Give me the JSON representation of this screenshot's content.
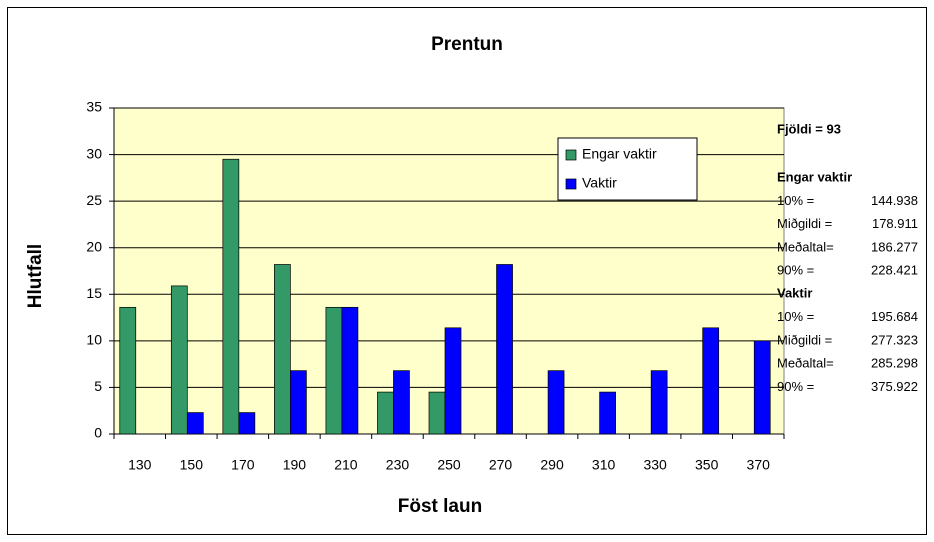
{
  "chart_data": {
    "type": "bar",
    "title": "Prentun",
    "x_label": "Föst laun",
    "y_label": "Hlutfall",
    "categories": [
      "130",
      "150",
      "170",
      "190",
      "210",
      "230",
      "250",
      "270",
      "290",
      "310",
      "330",
      "350",
      "370"
    ],
    "series": [
      {
        "name": "Engar vaktir",
        "color": "#339966",
        "values": [
          13.6,
          15.9,
          29.5,
          18.2,
          13.6,
          4.5,
          4.5,
          0,
          0,
          0,
          0,
          0,
          0
        ]
      },
      {
        "name": "Vaktir",
        "color": "#0000ff",
        "values": [
          0,
          2.3,
          2.3,
          6.8,
          13.6,
          6.8,
          11.4,
          18.2,
          6.8,
          4.5,
          6.8,
          11.4,
          10
        ]
      }
    ],
    "ylim": [
      0,
      35
    ],
    "yticks": [
      0,
      5,
      10,
      15,
      20,
      25,
      30,
      35
    ],
    "grid": true,
    "legend": "upper right",
    "side_panel": {
      "count": "Fjöldi = 93",
      "groups": [
        {
          "name": "Engar vaktir",
          "rows": [
            [
              "10% =",
              144.938
            ],
            [
              "Miðgildi =",
              178.911
            ],
            [
              "Meðaltal=",
              186.277
            ],
            [
              "90% =",
              228.421
            ]
          ]
        },
        {
          "name": "Vaktir",
          "rows": [
            [
              "10% =",
              195.684
            ],
            [
              "Miðgildi =",
              277.323
            ],
            [
              "Meðaltal=",
              285.298
            ],
            [
              "90% =",
              375.922
            ]
          ]
        }
      ]
    }
  }
}
